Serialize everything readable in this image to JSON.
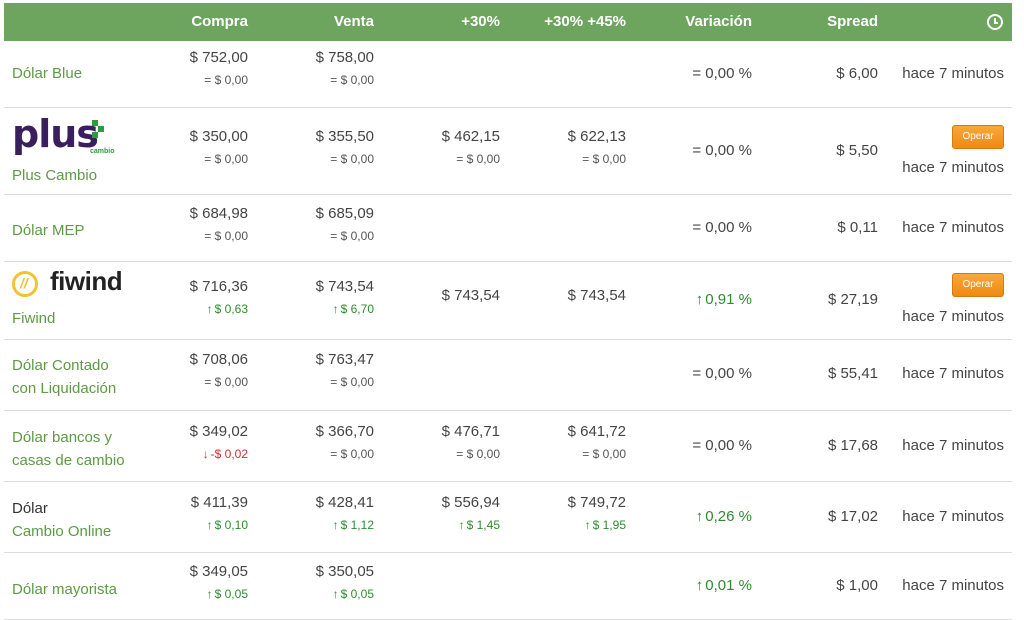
{
  "colors": {
    "header_bg": "#6ea55e",
    "accent_green": "#5d9a46",
    "up_green": "#2e8b2e",
    "down_red": "#d92b2b",
    "button_orange": "#f39a1f"
  },
  "header": {
    "compra": "Compra",
    "venta": "Venta",
    "p30": "+30%",
    "p30_45": "+30% +45%",
    "variacion": "Variación",
    "spread": "Spread",
    "clock_icon": "clock-icon"
  },
  "rows": [
    {
      "name": "Dólar Blue",
      "compra": "$ 752,00",
      "compra_d": "= $ 0,00",
      "venta": "$ 758,00",
      "venta_d": "= $ 0,00",
      "variacion": "= 0,00 %",
      "spread": "$ 6,00",
      "time": "hace 7 minutos"
    },
    {
      "logo": "plus",
      "logo_word": "plus",
      "logo_sub": "cambio",
      "name": "Plus Cambio",
      "compra": "$ 350,00",
      "compra_d": "= $ 0,00",
      "venta": "$ 355,50",
      "venta_d": "= $ 0,00",
      "p30": "$ 462,15",
      "p30_d": "= $ 0,00",
      "p45": "$ 622,13",
      "p45_d": "= $ 0,00",
      "variacion": "= 0,00 %",
      "spread": "$ 5,50",
      "button": "Operar",
      "time": "hace 7 minutos"
    },
    {
      "name": "Dólar MEP",
      "compra": "$ 684,98",
      "compra_d": "= $ 0,00",
      "venta": "$ 685,09",
      "venta_d": "= $ 0,00",
      "variacion": "= 0,00 %",
      "spread": "$ 0,11",
      "time": "hace 7 minutos"
    },
    {
      "logo": "fiwind",
      "logo_word": "fiwind",
      "name": "Fiwind",
      "compra": "$ 716,36",
      "compra_d": "$ 0,63",
      "venta": "$ 743,54",
      "venta_d": "$ 6,70",
      "p30": "$ 743,54",
      "p45": "$ 743,54",
      "variacion": "0,91 %",
      "spread": "$ 27,19",
      "button": "Operar",
      "time": "hace 7 minutos"
    },
    {
      "name_l1": "Dólar Contado",
      "name_l2": "con Liquidación",
      "compra": "$ 708,06",
      "compra_d": "= $ 0,00",
      "venta": "$ 763,47",
      "venta_d": "= $ 0,00",
      "variacion": "= 0,00 %",
      "spread": "$ 55,41",
      "time": "hace 7 minutos"
    },
    {
      "name_l1": "Dólar bancos y",
      "name_l2": "casas de cambio",
      "compra": "$ 349,02",
      "compra_d": "-$ 0,02",
      "venta": "$ 366,70",
      "venta_d": "= $ 0,00",
      "p30": "$ 476,71",
      "p30_d": "= $ 0,00",
      "p45": "$ 641,72",
      "p45_d": "= $ 0,00",
      "variacion": "= 0,00 %",
      "spread": "$ 17,68",
      "time": "hace 7 minutos"
    },
    {
      "name_l1": "Dólar",
      "name_l2": "Cambio Online",
      "compra": "$ 411,39",
      "compra_d": "$ 0,10",
      "venta": "$ 428,41",
      "venta_d": "$ 1,12",
      "p30": "$ 556,94",
      "p30_d": "$ 1,45",
      "p45": "$ 749,72",
      "p45_d": "$ 1,95",
      "variacion": "0,26 %",
      "spread": "$ 17,02",
      "time": "hace 7 minutos"
    },
    {
      "name": "Dólar mayorista",
      "compra": "$ 349,05",
      "compra_d": "$ 0,05",
      "venta": "$ 350,05",
      "venta_d": "$ 0,05",
      "variacion": "0,01 %",
      "spread": "$ 1,00",
      "time": "hace 7 minutos"
    }
  ]
}
